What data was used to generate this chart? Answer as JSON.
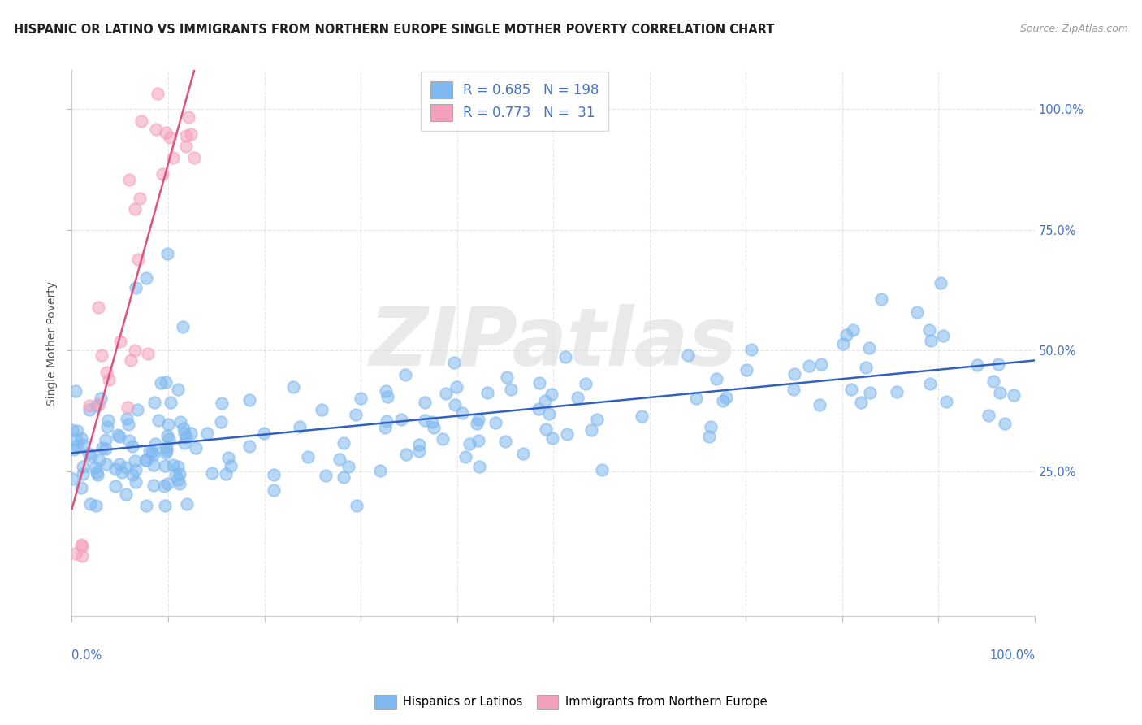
{
  "title": "HISPANIC OR LATINO VS IMMIGRANTS FROM NORTHERN EUROPE SINGLE MOTHER POVERTY CORRELATION CHART",
  "source": "Source: ZipAtlas.com",
  "ylabel": "Single Mother Poverty",
  "legend_label1": "Hispanics or Latinos",
  "legend_label2": "Immigrants from Northern Europe",
  "R1": 0.685,
  "N1": 198,
  "R2": 0.773,
  "N2": 31,
  "color_blue": "#7EB8F0",
  "color_pink": "#F5A0BA",
  "line_color_blue": "#3060C0",
  "line_color_pink": "#E0507A",
  "background": "#FFFFFF",
  "axis_color": "#4472C4",
  "ytick_labels": [
    "25.0%",
    "50.0%",
    "75.0%",
    "100.0%"
  ],
  "ytick_positions": [
    0.25,
    0.5,
    0.75,
    1.0
  ],
  "xlim": [
    0,
    1.0
  ],
  "ylim": [
    -0.05,
    1.08
  ]
}
